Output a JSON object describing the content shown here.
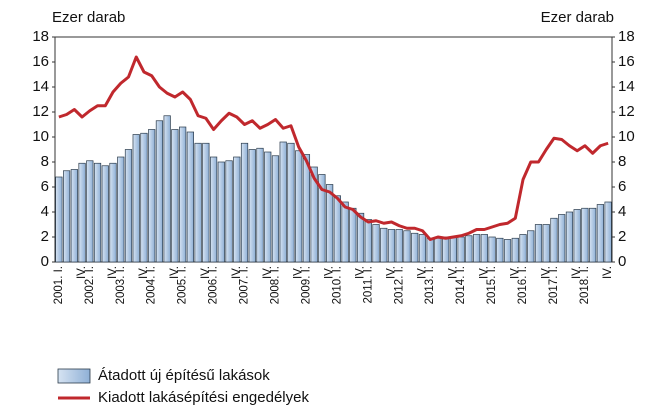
{
  "chart_data": {
    "type": "bar-line",
    "y_label": "Ezer darab",
    "y2_label": "Ezer darab",
    "categories": [
      "2001. I.",
      null,
      null,
      "IV.",
      "2002. I.",
      null,
      null,
      "IV.",
      "2003. I.",
      null,
      null,
      "IV.",
      "2004. I.",
      null,
      null,
      "IV.",
      "2005. I.",
      null,
      null,
      "IV.",
      "2006. I.",
      null,
      null,
      "IV.",
      "2007. I.",
      null,
      null,
      "IV.",
      "2008. I.",
      null,
      null,
      "IV.",
      "2009. I.",
      null,
      null,
      "IV.",
      "2010. I.",
      null,
      null,
      "IV.",
      "2011. I.",
      null,
      null,
      "IV.",
      "2012. I.",
      null,
      null,
      "IV.",
      "2013. I.",
      null,
      null,
      "IV.",
      "2014. I.",
      null,
      null,
      "IV.",
      "2015. I.",
      null,
      null,
      "IV.",
      "2016. I.",
      null,
      null,
      "IV.",
      "2017. I.",
      null,
      null,
      "IV.",
      "2018. I.",
      null,
      null,
      "IV."
    ],
    "series": [
      {
        "name": "Átadott új építésű lakások",
        "type": "bar",
        "color": "#a9c4e2",
        "values": [
          6.8,
          7.3,
          7.4,
          7.9,
          8.1,
          7.9,
          7.7,
          7.9,
          8.4,
          9.0,
          10.2,
          10.3,
          10.6,
          11.3,
          11.7,
          10.6,
          10.8,
          10.4,
          9.5,
          9.5,
          8.4,
          8.0,
          8.1,
          8.4,
          9.5,
          9.0,
          9.1,
          8.8,
          8.5,
          9.6,
          9.5,
          8.9,
          8.6,
          7.6,
          7.0,
          6.2,
          5.3,
          4.8,
          4.3,
          3.9,
          3.4,
          3.0,
          2.7,
          2.6,
          2.6,
          2.5,
          2.3,
          2.2,
          1.9,
          1.9,
          2.0,
          2.0,
          2.0,
          2.1,
          2.2,
          2.2,
          2.0,
          1.9,
          1.8,
          1.9,
          2.2,
          2.5,
          3.0,
          3.0,
          3.5,
          3.8,
          4.0,
          4.2,
          4.3,
          4.3,
          4.6,
          4.8
        ]
      },
      {
        "name": "Kiadott lakásépítési engedélyek",
        "type": "line",
        "color": "#c0282d",
        "values": [
          11.6,
          11.8,
          12.2,
          11.6,
          12.1,
          12.5,
          12.5,
          13.6,
          14.3,
          14.8,
          16.4,
          15.2,
          14.9,
          14.0,
          13.5,
          13.2,
          13.6,
          13.0,
          11.7,
          11.5,
          10.6,
          11.3,
          11.9,
          11.6,
          11.0,
          11.3,
          10.7,
          11.0,
          11.4,
          10.7,
          10.9,
          9.2,
          8.1,
          6.7,
          5.8,
          5.6,
          5.1,
          4.4,
          4.2,
          3.6,
          3.2,
          3.3,
          3.1,
          3.2,
          2.9,
          2.7,
          2.7,
          2.5,
          1.8,
          2.0,
          1.9,
          2.0,
          2.1,
          2.3,
          2.6,
          2.6,
          2.8,
          3.0,
          3.1,
          3.5,
          6.6,
          8.0,
          8.0,
          9.0,
          9.9,
          9.8,
          9.3,
          8.9,
          9.3,
          8.7,
          9.3,
          9.5
        ]
      }
    ],
    "ylim": [
      0,
      18
    ],
    "yticks": [
      0,
      2,
      4,
      6,
      8,
      10,
      12,
      14,
      16,
      18
    ],
    "y2lim": [
      0,
      18
    ],
    "y2ticks": [
      0,
      2,
      4,
      6,
      8,
      10,
      12,
      14,
      16,
      18
    ],
    "grid": false,
    "legend": "bottom-left"
  }
}
